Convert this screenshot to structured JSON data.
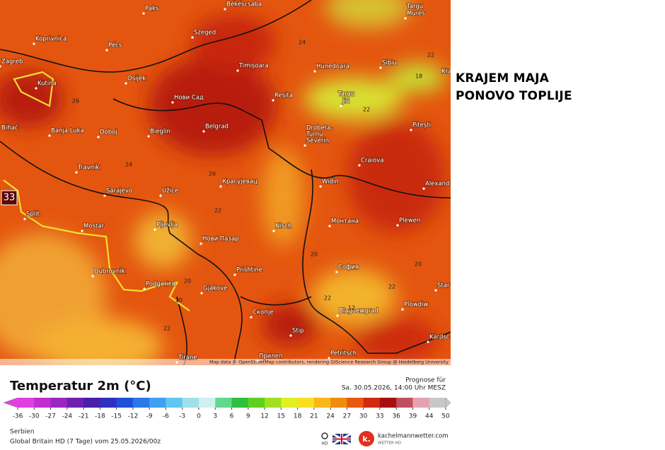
{
  "headline": [
    "KRAJEM MAJA",
    "PONOVO TOPLIJE"
  ],
  "map": {
    "cities": [
      "Paks",
      "Békéscsaba",
      "Targu",
      "Mures",
      "Koprivnica",
      "Pécs",
      "Szeged",
      "Zagreb",
      "Osijek",
      "Timișoara",
      "Hunedoara",
      "Sibiu",
      "Kra",
      "Kutina",
      "Нови Сад",
      "Reșita",
      "Targu",
      "Jiu",
      "Pitești",
      "Bihać",
      "Banja Luka",
      "Doboj",
      "Bieglin",
      "Belgrad",
      "Drobeta-",
      "Turnu",
      "Severin",
      "Craiova",
      "Travnik",
      "Sarajevo",
      "Užice",
      "Крагујевац",
      "Widin",
      "Alexand",
      "Split",
      "Mostar",
      "Pljevlja",
      "Nisch",
      "Монтана",
      "Plewen",
      "Нови Пазар",
      "Dubrovnik",
      "Prishtine",
      "София",
      "Podgorica",
      "Gjakove",
      "Star",
      "Plowdiw",
      "Blagoewgrad",
      "Скопје",
      "Stip",
      "Kardsc",
      "Tirane",
      "Прилеп",
      "Petritsch"
    ],
    "isolines": [
      24,
      22,
      18,
      26,
      22,
      24,
      26,
      22,
      20,
      20,
      22,
      22,
      20,
      20,
      22,
      12
    ],
    "max_label": 33,
    "attribution": "Map data © OpenStreetMap contributors, rendering GIScience Research Group @ Heidelberg University"
  },
  "legend": {
    "title": "Temperatur 2m (°C)",
    "forecast_label": "Prognose für",
    "forecast_time": "Sa. 30.05.2026, 14:00 Uhr MESZ",
    "ticks": [
      -36,
      -30,
      -27,
      -24,
      -21,
      -18,
      -15,
      -12,
      -9,
      -6,
      -3,
      0,
      3,
      6,
      9,
      12,
      15,
      18,
      21,
      24,
      27,
      30,
      33,
      36,
      39,
      44,
      50
    ],
    "colors": [
      "#e040e0",
      "#c030d0",
      "#9a28c0",
      "#7020b0",
      "#4a20a8",
      "#3030c0",
      "#2050d8",
      "#2a78e8",
      "#40a0f0",
      "#60c8f0",
      "#a0e0e8",
      "#d0f0f0",
      "#60d890",
      "#30c040",
      "#60d020",
      "#a0e020",
      "#e0f020",
      "#f8e020",
      "#f8b818",
      "#f08c10",
      "#e85a10",
      "#d02a10",
      "#a81010",
      "#c05060",
      "#e8a0b0",
      "#c8c8c8"
    ]
  },
  "footer": {
    "region": "Serbien",
    "model": "Global Britain HD (7 Tage) vom 25.05.2026/00z",
    "hd": "HD",
    "logo_mark": "k.",
    "site": "kachelmannwetter.com",
    "site_sub": "WETTER HD"
  }
}
